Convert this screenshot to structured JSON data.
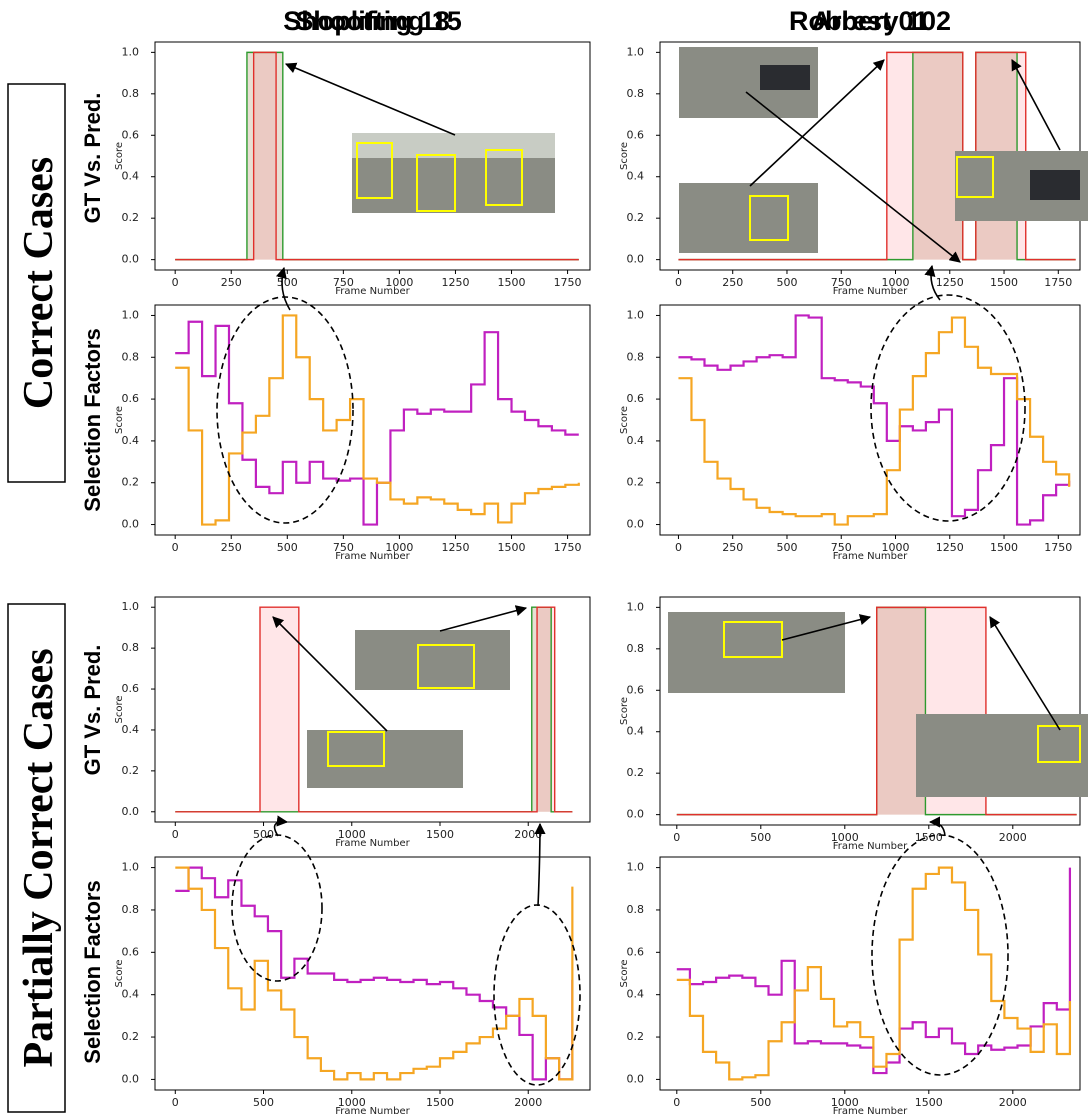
{
  "rows": [
    {
      "title": "Correct Cases",
      "panels": [
        "GT Vs. Pred.",
        "Selection Factors"
      ]
    },
    {
      "title": "Partially Correct Cases",
      "panels": [
        "GT Vs. Pred.",
        "Selection Factors"
      ]
    }
  ],
  "chart_data": [
    {
      "type": "step",
      "title": "Shooting 18",
      "x_label": "Frame Number",
      "y_label": "Score",
      "fill_under": true,
      "x": [
        0,
        320,
        350,
        450,
        480,
        1800
      ],
      "series": [
        {
          "color": "#2e9a2e",
          "values": [
            0,
            1,
            1,
            1,
            0,
            0
          ]
        },
        {
          "color": "#e0302c",
          "values": [
            0,
            0,
            1,
            0,
            0,
            0
          ]
        }
      ],
      "xlim": [
        -90,
        1850
      ],
      "ylim": [
        -0.05,
        1.05
      ],
      "xticks": [
        0,
        250,
        500,
        750,
        1000,
        1250,
        1500,
        1750
      ],
      "yticks": [
        {
          "value": 0,
          "label": "0.0"
        },
        {
          "value": 0.2,
          "label": "0.2"
        },
        {
          "value": 0.4,
          "label": "0.4"
        },
        {
          "value": 0.6,
          "label": "0.6"
        },
        {
          "value": 0.8,
          "label": "0.8"
        },
        {
          "value": 1,
          "label": "1.0"
        }
      ]
    },
    {
      "type": "step",
      "x_label": "Frame Number",
      "y_label": "Score",
      "x": [
        0,
        60,
        120,
        180,
        240,
        300,
        360,
        420,
        480,
        540,
        600,
        660,
        720,
        780,
        840,
        900,
        960,
        1020,
        1080,
        1140,
        1200,
        1260,
        1320,
        1380,
        1440,
        1500,
        1560,
        1620,
        1680,
        1740,
        1800
      ],
      "series": [
        {
          "color": "#c020c0",
          "values": [
            0.82,
            0.97,
            0.71,
            0.95,
            0.58,
            0.31,
            0.18,
            0.15,
            0.3,
            0.2,
            0.3,
            0.22,
            0.21,
            0.22,
            0.0,
            0.2,
            0.45,
            0.55,
            0.53,
            0.55,
            0.54,
            0.54,
            0.67,
            0.92,
            0.6,
            0.54,
            0.5,
            0.47,
            0.45,
            0.43,
            0.43
          ]
        },
        {
          "color": "#f5a623",
          "values": [
            0.75,
            0.45,
            0.0,
            0.02,
            0.34,
            0.44,
            0.52,
            0.7,
            1.0,
            0.8,
            0.6,
            0.45,
            0.5,
            0.6,
            0.22,
            0.2,
            0.12,
            0.1,
            0.13,
            0.12,
            0.1,
            0.07,
            0.05,
            0.1,
            0.01,
            0.1,
            0.15,
            0.17,
            0.18,
            0.19,
            0.2
          ]
        }
      ],
      "xlim": [
        -90,
        1850
      ],
      "ylim": [
        -0.05,
        1.05
      ],
      "xticks": [
        0,
        250,
        500,
        750,
        1000,
        1250,
        1500,
        1750
      ],
      "yticks": [
        {
          "value": 0,
          "label": "0.0"
        },
        {
          "value": 0.2,
          "label": "0.2"
        },
        {
          "value": 0.4,
          "label": "0.4"
        },
        {
          "value": 0.6,
          "label": "0.6"
        },
        {
          "value": 0.8,
          "label": "0.8"
        },
        {
          "value": 1,
          "label": "1.0"
        }
      ]
    },
    {
      "type": "step",
      "title": "Robbery 102",
      "x_label": "Frame Number",
      "y_label": "Score",
      "fill_under": true,
      "x": [
        0,
        960,
        1080,
        1310,
        1370,
        1560,
        1600,
        1830
      ],
      "series": [
        {
          "color": "#2e9a2e",
          "values": [
            0,
            0,
            1,
            0,
            1,
            0,
            0,
            0
          ]
        },
        {
          "color": "#e0302c",
          "values": [
            0,
            1,
            1,
            0,
            1,
            1,
            0,
            0
          ]
        }
      ],
      "xlim": [
        -85,
        1850
      ],
      "ylim": [
        -0.05,
        1.05
      ],
      "xticks": [
        0,
        250,
        500,
        750,
        1000,
        1250,
        1500,
        1750
      ],
      "yticks": [
        {
          "value": 0,
          "label": "0.0"
        },
        {
          "value": 0.2,
          "label": "0.2"
        },
        {
          "value": 0.4,
          "label": "0.4"
        },
        {
          "value": 0.6,
          "label": "0.6"
        },
        {
          "value": 0.8,
          "label": "0.8"
        },
        {
          "value": 1,
          "label": "1.0"
        }
      ]
    },
    {
      "type": "step",
      "x_label": "Frame Number",
      "y_label": "Score",
      "x": [
        0,
        60,
        120,
        180,
        240,
        300,
        360,
        420,
        480,
        540,
        600,
        660,
        720,
        780,
        840,
        900,
        960,
        1020,
        1080,
        1140,
        1200,
        1260,
        1320,
        1380,
        1440,
        1500,
        1560,
        1620,
        1680,
        1740,
        1800
      ],
      "series": [
        {
          "color": "#c020c0",
          "values": [
            0.8,
            0.79,
            0.76,
            0.74,
            0.76,
            0.78,
            0.8,
            0.81,
            0.8,
            1.0,
            0.99,
            0.7,
            0.69,
            0.68,
            0.66,
            0.58,
            0.4,
            0.47,
            0.45,
            0.49,
            0.55,
            0.04,
            0.07,
            0.26,
            0.38,
            0.7,
            0.0,
            0.02,
            0.14,
            0.19,
            0.21
          ]
        },
        {
          "color": "#f5a623",
          "values": [
            0.7,
            0.5,
            0.3,
            0.22,
            0.17,
            0.12,
            0.08,
            0.06,
            0.05,
            0.04,
            0.04,
            0.05,
            0.0,
            0.04,
            0.04,
            0.05,
            0.26,
            0.55,
            0.71,
            0.82,
            0.92,
            0.99,
            0.85,
            0.75,
            0.72,
            0.72,
            0.6,
            0.42,
            0.3,
            0.24,
            0.18
          ]
        }
      ],
      "xlim": [
        -85,
        1850
      ],
      "ylim": [
        -0.05,
        1.05
      ],
      "xticks": [
        0,
        250,
        500,
        750,
        1000,
        1250,
        1500,
        1750
      ],
      "yticks": [
        {
          "value": 0,
          "label": "0.0"
        },
        {
          "value": 0.2,
          "label": "0.2"
        },
        {
          "value": 0.4,
          "label": "0.4"
        },
        {
          "value": 0.6,
          "label": "0.6"
        },
        {
          "value": 0.8,
          "label": "0.8"
        },
        {
          "value": 1,
          "label": "1.0"
        }
      ]
    },
    {
      "type": "step",
      "title": "Shoplifting 15",
      "x_label": "Frame Number",
      "y_label": "Score",
      "fill_under": true,
      "x": [
        0,
        480,
        700,
        2020,
        2050,
        2130,
        2150,
        2250
      ],
      "series": [
        {
          "color": "#2e9a2e",
          "values": [
            0,
            0,
            0,
            1,
            1,
            0,
            0,
            0
          ]
        },
        {
          "color": "#e0302c",
          "values": [
            0,
            1,
            0,
            0,
            1,
            1,
            0,
            0
          ]
        }
      ],
      "xlim": [
        -115,
        2350
      ],
      "ylim": [
        -0.05,
        1.05
      ],
      "xticks": [
        0,
        500,
        1000,
        1500,
        2000
      ],
      "yticks": [
        {
          "value": 0,
          "label": "0.0"
        },
        {
          "value": 0.2,
          "label": "0.2"
        },
        {
          "value": 0.4,
          "label": "0.4"
        },
        {
          "value": 0.6,
          "label": "0.6"
        },
        {
          "value": 0.8,
          "label": "0.8"
        },
        {
          "value": 1,
          "label": "1.0"
        }
      ]
    },
    {
      "type": "step",
      "x_label": "Frame Number",
      "y_label": "Score",
      "x": [
        0,
        75,
        150,
        225,
        300,
        375,
        450,
        525,
        600,
        675,
        750,
        825,
        900,
        975,
        1050,
        1125,
        1200,
        1275,
        1350,
        1425,
        1500,
        1575,
        1650,
        1725,
        1800,
        1875,
        1950,
        2025,
        2100,
        2175,
        2250
      ],
      "series": [
        {
          "color": "#c020c0",
          "values": [
            0.89,
            1.0,
            0.95,
            0.86,
            0.94,
            0.82,
            0.77,
            0.7,
            0.48,
            0.57,
            0.5,
            0.5,
            0.47,
            0.46,
            0.47,
            0.48,
            0.47,
            0.46,
            0.47,
            0.45,
            0.46,
            0.43,
            0.4,
            0.37,
            0.34,
            0.3,
            0.21,
            0.0,
            0.1,
            0.0,
            0.47
          ]
        },
        {
          "color": "#f5a623",
          "values": [
            1.0,
            0.9,
            0.8,
            0.62,
            0.43,
            0.33,
            0.56,
            0.42,
            0.33,
            0.2,
            0.1,
            0.04,
            0.0,
            0.03,
            0.0,
            0.03,
            0.0,
            0.03,
            0.05,
            0.06,
            0.1,
            0.13,
            0.17,
            0.2,
            0.24,
            0.3,
            0.38,
            0.3,
            0.1,
            0.0,
            0.91
          ]
        }
      ],
      "xlim": [
        -115,
        2350
      ],
      "ylim": [
        -0.05,
        1.05
      ],
      "xticks": [
        0,
        500,
        1000,
        1500,
        2000
      ],
      "yticks": [
        {
          "value": 0,
          "label": "0.0"
        },
        {
          "value": 0.2,
          "label": "0.2"
        },
        {
          "value": 0.4,
          "label": "0.4"
        },
        {
          "value": 0.6,
          "label": "0.6"
        },
        {
          "value": 0.8,
          "label": "0.8"
        },
        {
          "value": 1,
          "label": "1.0"
        }
      ]
    },
    {
      "type": "step",
      "title": "Arrest 01",
      "x_label": "Frame Number",
      "y_label": "Score",
      "fill_under": true,
      "x": [
        0,
        1190,
        1480,
        1840,
        2380
      ],
      "series": [
        {
          "color": "#2e9a2e",
          "values": [
            0,
            1,
            0,
            0,
            0
          ]
        },
        {
          "color": "#e0302c",
          "values": [
            0,
            1,
            1,
            0,
            0
          ]
        }
      ],
      "xlim": [
        -100,
        2400
      ],
      "ylim": [
        -0.05,
        1.05
      ],
      "xticks": [
        0,
        500,
        1000,
        1500,
        2000
      ],
      "yticks": [
        {
          "value": 0,
          "label": "0.0"
        },
        {
          "value": 0.2,
          "label": "0.2"
        },
        {
          "value": 0.4,
          "label": "0.4"
        },
        {
          "value": 0.6,
          "label": "0.6"
        },
        {
          "value": 0.8,
          "label": "0.8"
        },
        {
          "value": 1,
          "label": "1.0"
        }
      ]
    },
    {
      "type": "step",
      "x_label": "Frame Number",
      "y_label": "Score",
      "x": [
        0,
        78,
        156,
        234,
        312,
        390,
        468,
        546,
        624,
        702,
        780,
        858,
        936,
        1014,
        1092,
        1170,
        1248,
        1326,
        1404,
        1482,
        1560,
        1638,
        1716,
        1794,
        1872,
        1950,
        2028,
        2106,
        2184,
        2262,
        2340
      ],
      "series": [
        {
          "color": "#c020c0",
          "values": [
            0.52,
            0.45,
            0.46,
            0.48,
            0.49,
            0.48,
            0.44,
            0.4,
            0.56,
            0.17,
            0.18,
            0.17,
            0.17,
            0.16,
            0.15,
            0.03,
            0.08,
            0.24,
            0.27,
            0.2,
            0.24,
            0.17,
            0.12,
            0.16,
            0.14,
            0.15,
            0.16,
            0.25,
            0.36,
            0.33,
            1.0
          ]
        },
        {
          "color": "#f5a623",
          "values": [
            0.47,
            0.3,
            0.13,
            0.08,
            0.0,
            0.01,
            0.02,
            0.18,
            0.27,
            0.42,
            0.53,
            0.38,
            0.25,
            0.27,
            0.2,
            0.06,
            0.12,
            0.66,
            0.9,
            0.97,
            1.0,
            0.93,
            0.8,
            0.59,
            0.37,
            0.29,
            0.24,
            0.13,
            0.26,
            0.12,
            0.37
          ]
        }
      ],
      "xlim": [
        -100,
        2400
      ],
      "ylim": [
        -0.05,
        1.05
      ],
      "xticks": [
        0,
        500,
        1000,
        1500,
        2000
      ],
      "yticks": [
        {
          "value": 0,
          "label": "0.0"
        },
        {
          "value": 0.2,
          "label": "0.2"
        },
        {
          "value": 0.4,
          "label": "0.4"
        },
        {
          "value": 0.6,
          "label": "0.6"
        },
        {
          "value": 0.8,
          "label": "0.8"
        },
        {
          "value": 1,
          "label": "1.0"
        }
      ]
    }
  ]
}
